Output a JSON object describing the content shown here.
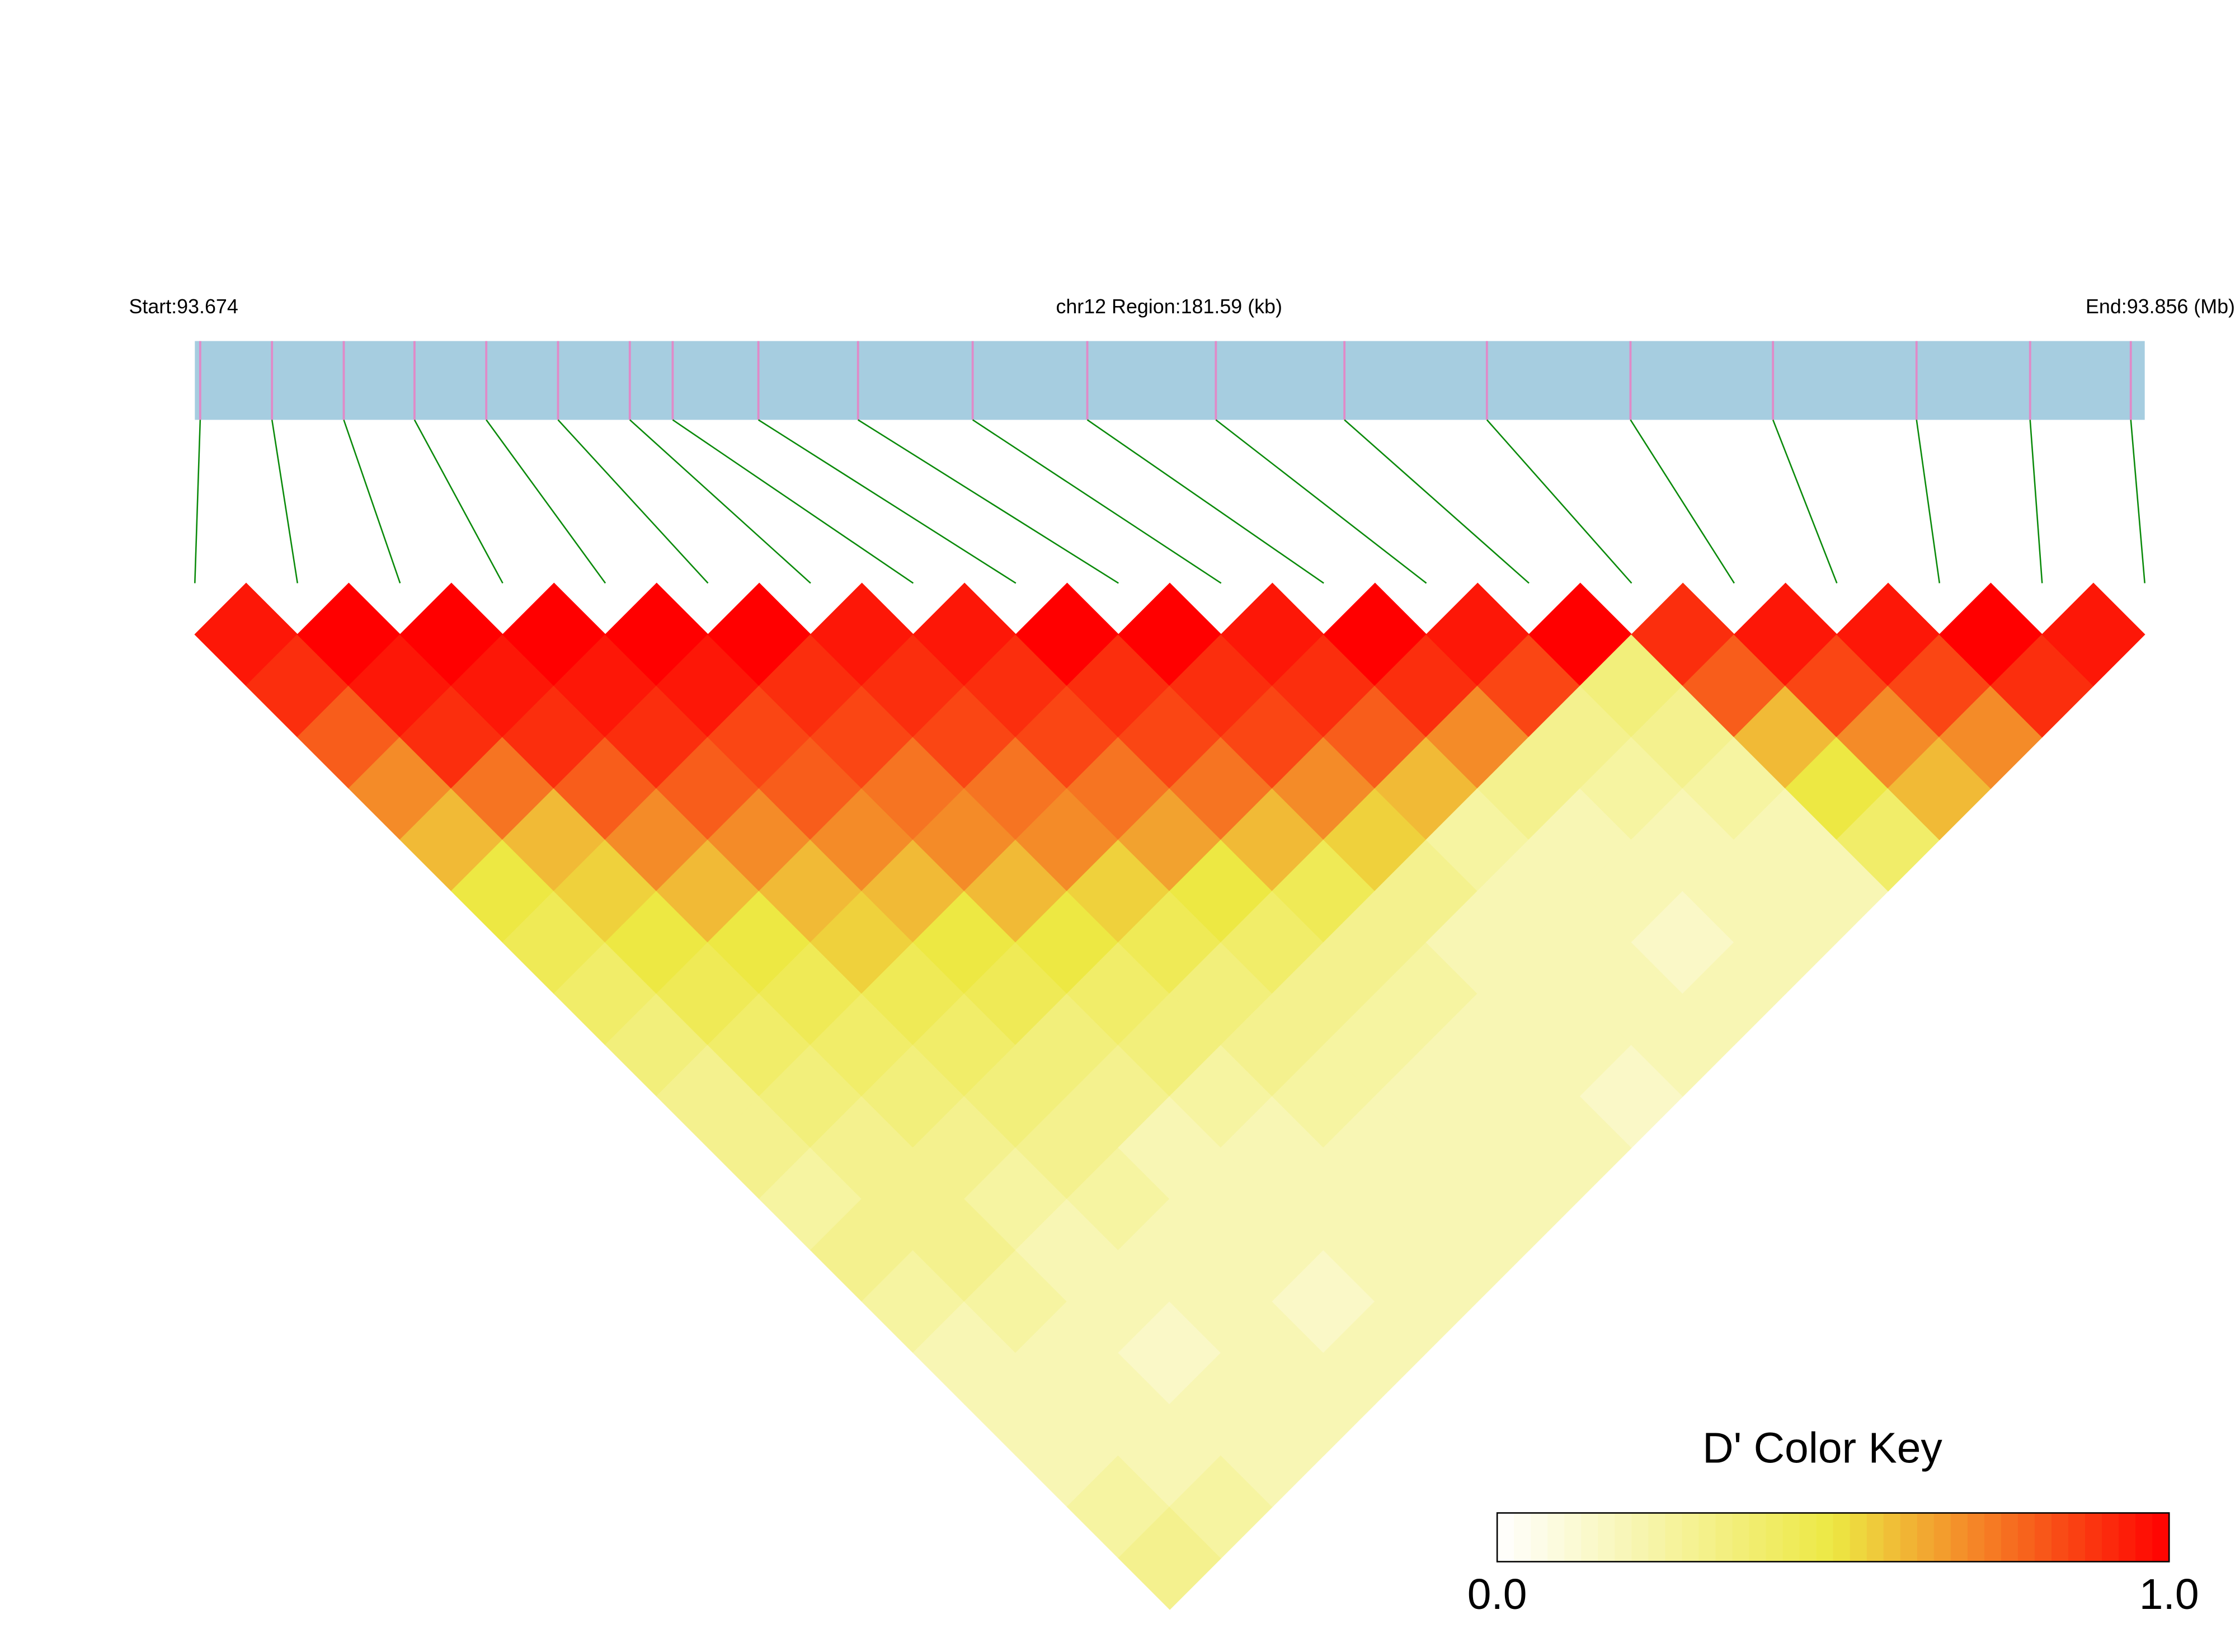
{
  "chart_data": {
    "type": "ld_heatmap",
    "start_label": "Start:93.674",
    "region_label": "chr12 Region:181.59 (kb)",
    "end_label": "End:93.856 (Mb)",
    "key_title": "D' Color Key",
    "xlim": [
      93.674,
      93.856
    ],
    "snp_positions": [
      93.6745,
      93.6812,
      93.6879,
      93.6945,
      93.7012,
      93.7079,
      93.7146,
      93.7186,
      93.7266,
      93.7359,
      93.7466,
      93.7573,
      93.7693,
      93.7813,
      93.7946,
      93.808,
      93.8213,
      93.8347,
      93.8453,
      93.8547
    ],
    "bar_color": "#a6cde0",
    "snp_color": "#e08ac8",
    "link_color": "#0a8a0a",
    "color_scale": [
      "#ffffff",
      "#ede843",
      "#ff0000"
    ],
    "ld": [
      [
        0.95
      ],
      [
        0.9,
        1.0
      ],
      [
        0.8,
        0.95,
        1.0
      ],
      [
        0.7,
        0.9,
        0.95,
        1.0
      ],
      [
        0.6,
        0.75,
        0.9,
        0.95,
        1.0
      ],
      [
        0.5,
        0.6,
        0.8,
        0.9,
        0.95,
        1.0
      ],
      [
        0.45,
        0.55,
        0.7,
        0.8,
        0.85,
        0.9,
        0.95
      ],
      [
        0.4,
        0.5,
        0.6,
        0.7,
        0.8,
        0.85,
        0.9,
        0.95
      ],
      [
        0.35,
        0.45,
        0.5,
        0.6,
        0.7,
        0.75,
        0.85,
        0.9,
        1.0
      ],
      [
        0.3,
        0.4,
        0.45,
        0.55,
        0.6,
        0.7,
        0.75,
        0.85,
        0.9,
        1.0
      ],
      [
        0.3,
        0.35,
        0.4,
        0.45,
        0.5,
        0.6,
        0.7,
        0.75,
        0.85,
        0.9,
        0.95
      ],
      [
        0.25,
        0.3,
        0.35,
        0.4,
        0.45,
        0.5,
        0.55,
        0.65,
        0.75,
        0.85,
        0.9,
        1.0
      ],
      [
        0.3,
        0.3,
        0.3,
        0.35,
        0.35,
        0.4,
        0.45,
        0.5,
        0.6,
        0.7,
        0.8,
        0.9,
        0.95
      ],
      [
        0.25,
        0.3,
        0.25,
        0.3,
        0.3,
        0.35,
        0.35,
        0.4,
        0.45,
        0.55,
        0.6,
        0.7,
        0.85,
        1.0
      ],
      [
        0.2,
        0.25,
        0.2,
        0.25,
        0.2,
        0.25,
        0.3,
        0.3,
        0.3,
        0.3,
        0.25,
        0.3,
        0.3,
        0.35,
        0.9
      ],
      [
        0.2,
        0.2,
        0.2,
        0.2,
        0.2,
        0.2,
        0.25,
        0.25,
        0.25,
        0.2,
        0.2,
        0.2,
        0.25,
        0.3,
        0.8,
        0.95
      ],
      [
        0.2,
        0.2,
        0.15,
        0.2,
        0.2,
        0.2,
        0.2,
        0.2,
        0.2,
        0.2,
        0.2,
        0.2,
        0.2,
        0.25,
        0.6,
        0.85,
        0.95
      ],
      [
        0.25,
        0.2,
        0.2,
        0.2,
        0.15,
        0.2,
        0.2,
        0.2,
        0.2,
        0.2,
        0.2,
        0.15,
        0.2,
        0.2,
        0.5,
        0.7,
        0.85,
        1.0
      ],
      [
        0.3,
        0.25,
        0.2,
        0.2,
        0.2,
        0.2,
        0.2,
        0.2,
        0.2,
        0.15,
        0.2,
        0.2,
        0.2,
        0.2,
        0.4,
        0.6,
        0.7,
        0.9,
        0.95
      ]
    ],
    "key_lim": [
      0,
      1
    ],
    "key_ticks": [
      {
        "value": 0,
        "label": "0.0"
      },
      {
        "value": 1,
        "label": "1.0"
      }
    ]
  }
}
